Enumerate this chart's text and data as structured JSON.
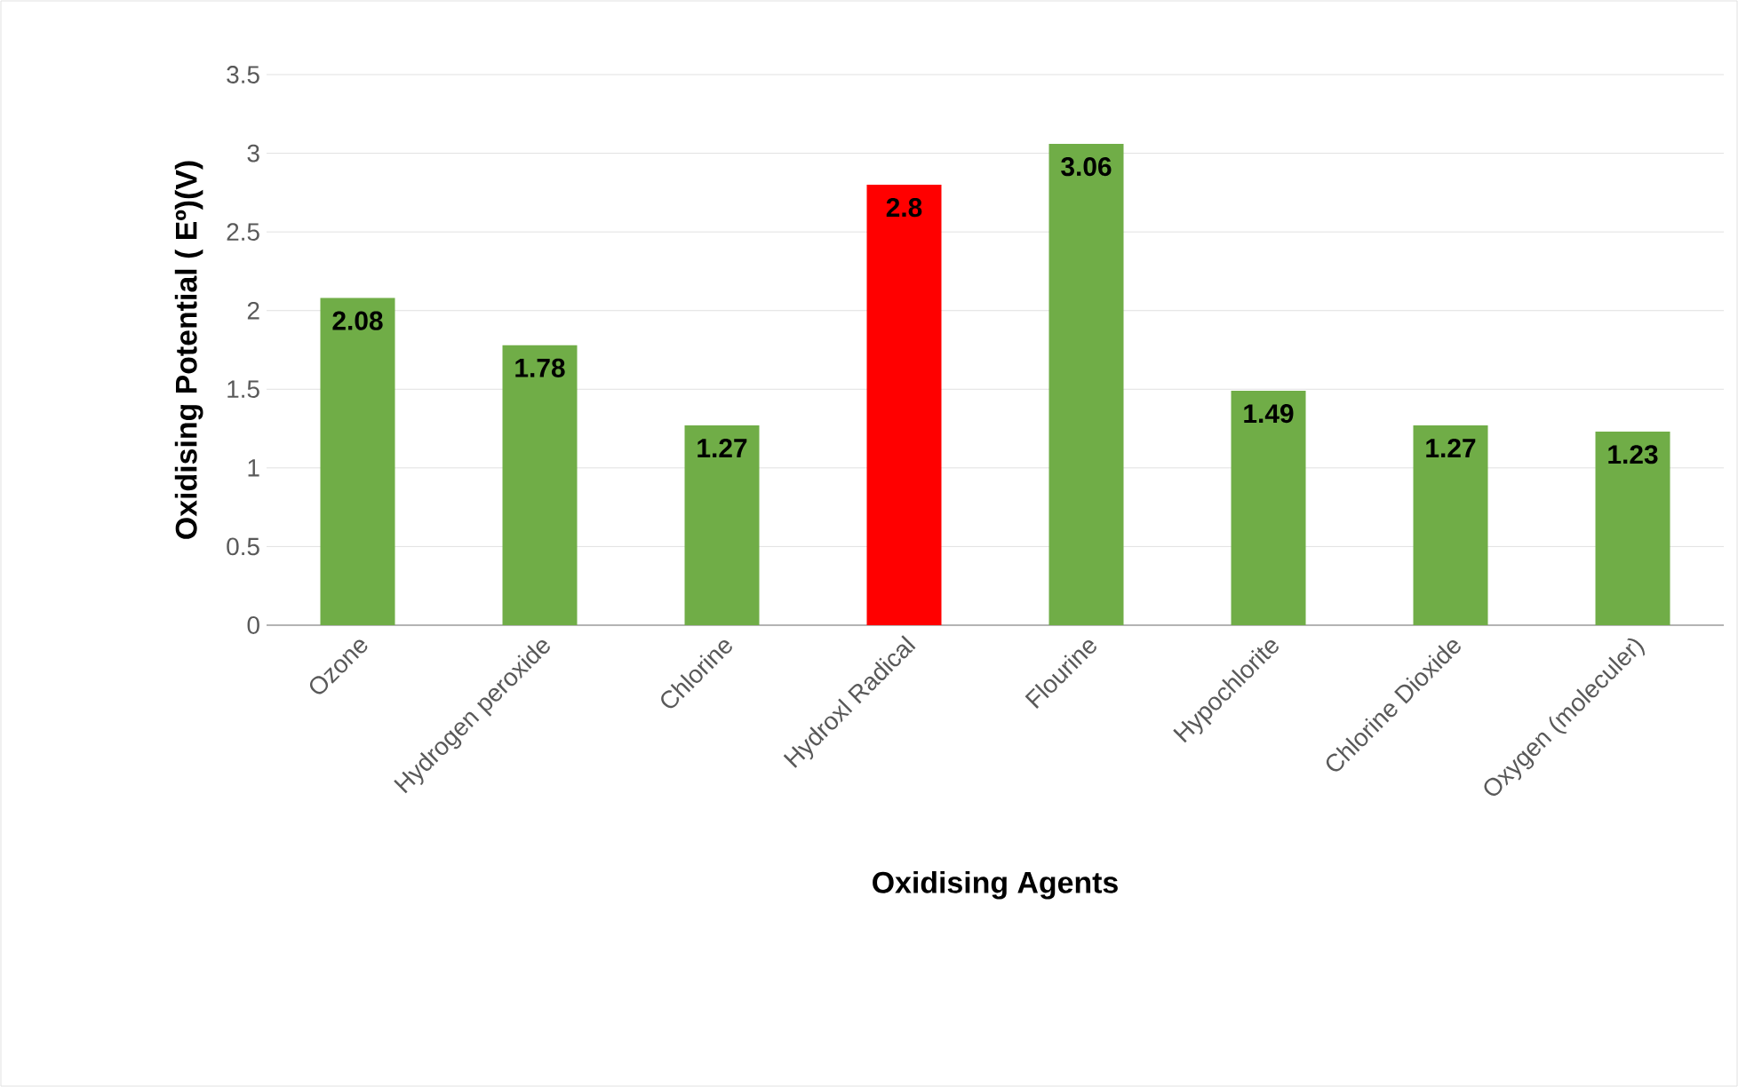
{
  "chart_data": {
    "type": "bar",
    "xlabel": "Oxidising Agents",
    "ylabel": "Oxidising Potential ( Eº)(V)",
    "categories": [
      "Ozone",
      "Hydrogen peroxide",
      "Chlorine",
      "Hydroxl Radical",
      "Flourine",
      "Hypochlorite",
      "Chlorine Dioxide",
      "Oxygen (moleculer)"
    ],
    "values": [
      2.08,
      1.78,
      1.27,
      2.8,
      3.06,
      1.49,
      1.27,
      1.23
    ],
    "colors": [
      "#70ad47",
      "#70ad47",
      "#70ad47",
      "#ff0000",
      "#70ad47",
      "#70ad47",
      "#70ad47",
      "#70ad47"
    ],
    "ylim": [
      0,
      3.5
    ],
    "yticks": [
      0,
      0.5,
      1,
      1.5,
      2,
      2.5,
      3,
      3.5
    ],
    "grid": "y",
    "data_labels": true
  }
}
